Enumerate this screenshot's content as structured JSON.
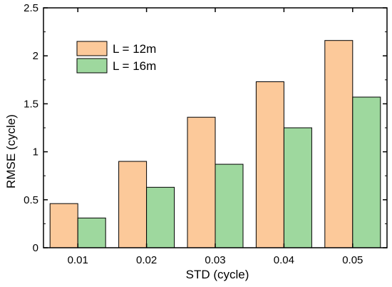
{
  "chart_data": {
    "type": "bar",
    "title": "",
    "xlabel": "STD (cycle)",
    "ylabel": "RMSE (cycle)",
    "categories": [
      "0.01",
      "0.02",
      "0.03",
      "0.04",
      "0.05"
    ],
    "ylim": [
      0,
      2.5
    ],
    "yticks": [
      "0",
      "0.5",
      "1",
      "1.5",
      "2",
      "2.5"
    ],
    "legend_position": "top-left",
    "grid": false,
    "series": [
      {
        "name": "L = 12m",
        "color": "#FCC99A",
        "values": [
          0.46,
          0.9,
          1.36,
          1.73,
          2.16
        ]
      },
      {
        "name": "L = 16m",
        "color": "#9ED89E",
        "values": [
          0.31,
          0.63,
          0.87,
          1.25,
          1.57
        ]
      }
    ]
  }
}
